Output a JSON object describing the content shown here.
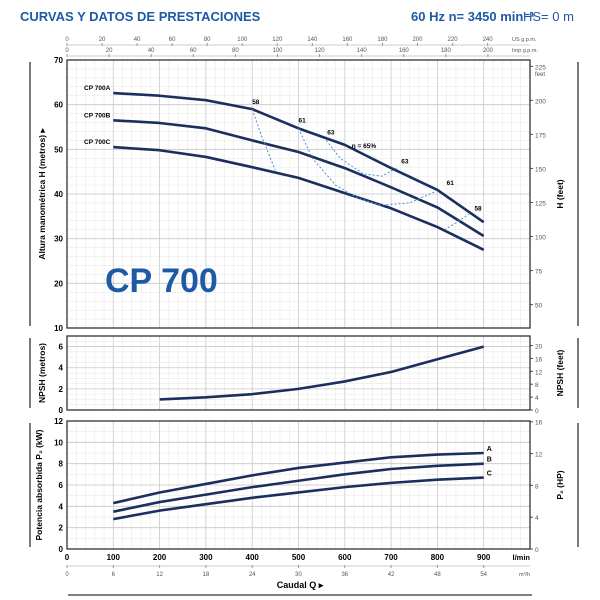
{
  "header": {
    "title": "CURVAS Y DATOS DE PRESTACIONES",
    "freq_speed": "60 Hz   n= 3450 min⁻¹",
    "hs": "HS= 0 m"
  },
  "model_label": "CP 700",
  "colors": {
    "title": "#1d5aa5",
    "curve": "#1b2f5e",
    "efficiency": "#4a8fd4",
    "grid": "#cfcfcf"
  },
  "chart_data": [
    {
      "type": "line",
      "title": "Altura manométrica",
      "ylabel": "Altura manométrica H (metros)",
      "ylabel_right": "H (feet)",
      "right_unit": "feet",
      "xlim": [
        0,
        1000
      ],
      "ylim": [
        10,
        70
      ],
      "yticks": [
        10,
        20,
        30,
        40,
        50,
        60,
        70
      ],
      "yticks_right": [
        50,
        75,
        100,
        125,
        150,
        175,
        200,
        225
      ],
      "top_axes": [
        {
          "unit": "US g.p.m.",
          "ticks": [
            0,
            20,
            40,
            60,
            80,
            100,
            120,
            140,
            160,
            180,
            200,
            220,
            240
          ],
          "factor": 3.785
        },
        {
          "unit": "Imp g.p.m.",
          "ticks": [
            0,
            20,
            40,
            60,
            80,
            100,
            120,
            140,
            160,
            180,
            200
          ],
          "factor": 4.546
        }
      ],
      "x": [
        100,
        200,
        300,
        400,
        500,
        600,
        700,
        800,
        900
      ],
      "series": [
        {
          "name": "CP 700A",
          "values": [
            62.6,
            62,
            61,
            59,
            54.7,
            51,
            45.8,
            40.9,
            33.7
          ]
        },
        {
          "name": "CP 700B",
          "values": [
            56.5,
            55.9,
            54.7,
            52,
            49.4,
            45.8,
            41.5,
            37,
            30.6
          ]
        },
        {
          "name": "CP 700C",
          "values": [
            50.5,
            49.8,
            48.3,
            46,
            43.6,
            40.2,
            36.8,
            32.6,
            27.5
          ]
        }
      ],
      "efficiency_lines": [
        {
          "label": "58",
          "points": [
            [
              400,
              59
            ],
            [
              420,
              53
            ],
            [
              450,
              45.3
            ]
          ]
        },
        {
          "label": "58",
          "points": [
            [
              815,
              32
            ],
            [
              840,
              33.5
            ],
            [
              868,
              35.5
            ]
          ]
        },
        {
          "label": "61",
          "points": [
            [
              500,
              54.7
            ],
            [
              530,
              48
            ],
            [
              580,
              42
            ],
            [
              630,
              39
            ],
            [
              678,
              37.5
            ],
            [
              740,
              38
            ],
            [
              795,
              40.5
            ]
          ]
        },
        {
          "label": "63",
          "points": [
            [
              560,
              52
            ],
            [
              590,
              48
            ],
            [
              640,
              44.5
            ],
            [
              680,
              44
            ],
            [
              712,
              45.8
            ]
          ]
        }
      ],
      "annotations": [
        {
          "text": "58",
          "x": 400,
          "y": 60.2
        },
        {
          "text": "61",
          "x": 500,
          "y": 56
        },
        {
          "text": "63",
          "x": 562,
          "y": 53.3
        },
        {
          "text": "η = 65%",
          "x": 615,
          "y": 50.3
        },
        {
          "text": "63",
          "x": 722,
          "y": 46.8
        },
        {
          "text": "61",
          "x": 820,
          "y": 42
        },
        {
          "text": "58",
          "x": 880,
          "y": 36.3
        }
      ]
    },
    {
      "type": "line",
      "title": "NPSH",
      "ylabel": "NPSH (metros)",
      "ylabel_right": "NPSH (feet)",
      "xlim": [
        0,
        1000
      ],
      "ylim": [
        0,
        7
      ],
      "yticks": [
        0,
        2,
        4,
        6
      ],
      "yticks_right": [
        0,
        4,
        8,
        12,
        16,
        20
      ],
      "x": [
        200,
        300,
        400,
        500,
        600,
        700,
        800,
        900
      ],
      "series": [
        {
          "name": "NPSH",
          "values": [
            1.0,
            1.2,
            1.5,
            2.0,
            2.7,
            3.6,
            4.8,
            6.0
          ]
        }
      ]
    },
    {
      "type": "line",
      "title": "Potencia absorbida",
      "ylabel": "Potencia absorbida P₂ (kW)",
      "ylabel_right": "P₂ (HP)",
      "xlim": [
        0,
        1000
      ],
      "ylim": [
        0,
        12
      ],
      "yticks": [
        0,
        2,
        4,
        6,
        8,
        10,
        12
      ],
      "yticks_right": [
        0,
        4,
        8,
        12,
        16
      ],
      "x": [
        100,
        200,
        300,
        400,
        500,
        600,
        700,
        800,
        900
      ],
      "series": [
        {
          "name": "A",
          "values": [
            4.3,
            5.3,
            6.1,
            6.9,
            7.6,
            8.1,
            8.6,
            8.85,
            9.0
          ]
        },
        {
          "name": "B",
          "values": [
            3.5,
            4.4,
            5.1,
            5.8,
            6.4,
            7.0,
            7.5,
            7.8,
            8.0
          ]
        },
        {
          "name": "C",
          "values": [
            2.8,
            3.6,
            4.2,
            4.8,
            5.3,
            5.8,
            6.2,
            6.5,
            6.7
          ]
        }
      ],
      "xticks": [
        0,
        100,
        200,
        300,
        400,
        500,
        600,
        700,
        800,
        900
      ],
      "xunit": "l/min",
      "xticks_m3h": [
        0,
        6,
        12,
        18,
        24,
        30,
        36,
        42,
        48,
        54
      ],
      "xunit_m3h": "m³/h",
      "xlabel": "Caudal Q ▸"
    }
  ]
}
